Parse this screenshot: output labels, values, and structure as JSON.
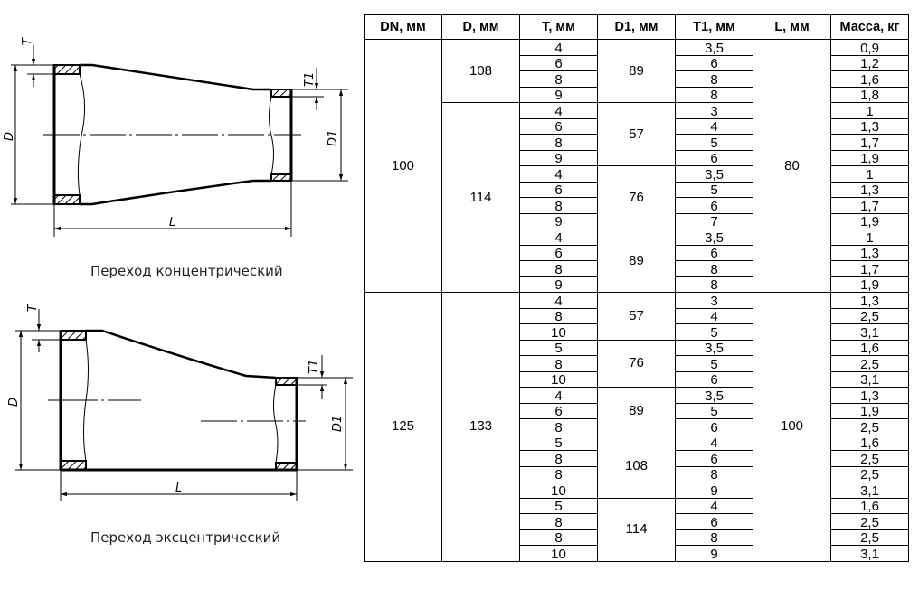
{
  "drawings": {
    "concentric": {
      "caption": "Переход концентрический",
      "labels": {
        "T": "T",
        "T1": "T1",
        "D": "D",
        "D1": "D1",
        "L": "L"
      }
    },
    "eccentric": {
      "caption": "Переход эксцентрический",
      "labels": {
        "T": "T",
        "T1": "T1",
        "D": "D",
        "D1": "D1",
        "L": "L"
      }
    }
  },
  "table": {
    "headers": [
      "DN, мм",
      "D, мм",
      "T, мм",
      "D1, мм",
      "T1, мм",
      "L, мм",
      "Масса, кг"
    ],
    "groups": [
      {
        "dn": "100",
        "l": "80",
        "d_groups": [
          {
            "d": "108",
            "d1_groups": [
              {
                "d1": "89",
                "rows": [
                  [
                    "4",
                    "3,5",
                    "0,9"
                  ],
                  [
                    "6",
                    "6",
                    "1,2"
                  ],
                  [
                    "8",
                    "8",
                    "1,6"
                  ],
                  [
                    "9",
                    "8",
                    "1,8"
                  ]
                ]
              }
            ]
          },
          {
            "d": "114",
            "d1_groups": [
              {
                "d1": "57",
                "rows": [
                  [
                    "4",
                    "3",
                    "1"
                  ],
                  [
                    "6",
                    "4",
                    "1,3"
                  ],
                  [
                    "8",
                    "5",
                    "1,7"
                  ],
                  [
                    "9",
                    "6",
                    "1,9"
                  ]
                ]
              },
              {
                "d1": "76",
                "rows": [
                  [
                    "4",
                    "3,5",
                    "1"
                  ],
                  [
                    "6",
                    "5",
                    "1,3"
                  ],
                  [
                    "8",
                    "6",
                    "1,7"
                  ],
                  [
                    "9",
                    "7",
                    "1,9"
                  ]
                ]
              },
              {
                "d1": "89",
                "rows": [
                  [
                    "4",
                    "3,5",
                    "1"
                  ],
                  [
                    "6",
                    "6",
                    "1,3"
                  ],
                  [
                    "8",
                    "8",
                    "1,7"
                  ],
                  [
                    "9",
                    "8",
                    "1,9"
                  ]
                ]
              }
            ]
          }
        ]
      },
      {
        "dn": "125",
        "l": "100",
        "d_groups": [
          {
            "d": "133",
            "d1_groups": [
              {
                "d1": "57",
                "rows": [
                  [
                    "4",
                    "3",
                    "1,3"
                  ],
                  [
                    "8",
                    "4",
                    "2,5"
                  ],
                  [
                    "10",
                    "5",
                    "3,1"
                  ]
                ]
              },
              {
                "d1": "76",
                "rows": [
                  [
                    "5",
                    "3,5",
                    "1,6"
                  ],
                  [
                    "8",
                    "5",
                    "2,5"
                  ],
                  [
                    "10",
                    "6",
                    "3,1"
                  ]
                ]
              },
              {
                "d1": "89",
                "rows": [
                  [
                    "4",
                    "3,5",
                    "1,3"
                  ],
                  [
                    "6",
                    "5",
                    "1,9"
                  ],
                  [
                    "8",
                    "6",
                    "2,5"
                  ]
                ]
              },
              {
                "d1": "108",
                "rows": [
                  [
                    "5",
                    "4",
                    "1,6"
                  ],
                  [
                    "8",
                    "6",
                    "2,5"
                  ],
                  [
                    "8",
                    "8",
                    "2,5"
                  ],
                  [
                    "10",
                    "9",
                    "3,1"
                  ]
                ]
              },
              {
                "d1": "114",
                "rows": [
                  [
                    "5",
                    "4",
                    "1,6"
                  ],
                  [
                    "8",
                    "6",
                    "2,5"
                  ],
                  [
                    "8",
                    "8",
                    "2,5"
                  ],
                  [
                    "10",
                    "9",
                    "3,1"
                  ]
                ]
              }
            ]
          }
        ]
      }
    ]
  }
}
